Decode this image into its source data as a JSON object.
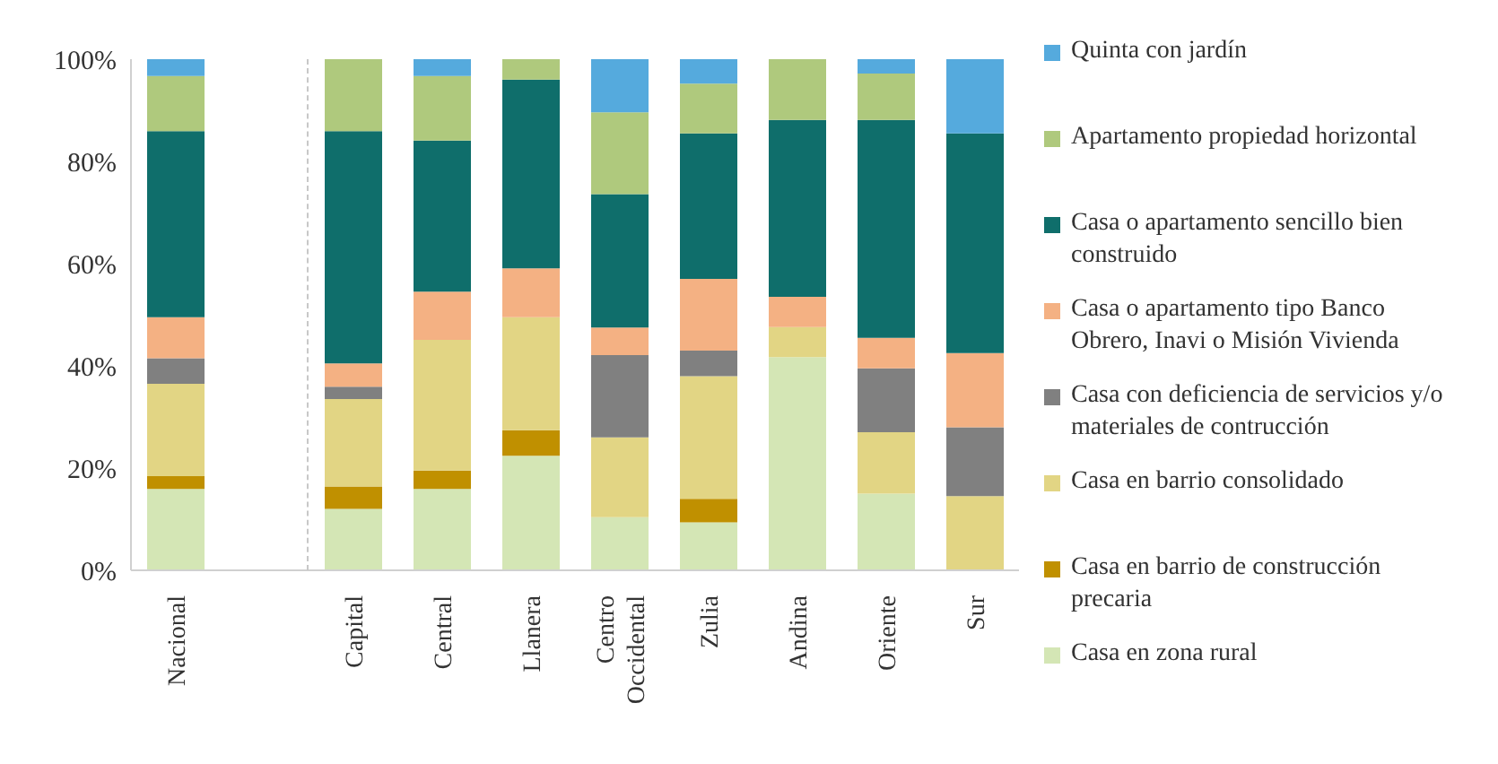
{
  "chart_data": {
    "type": "bar",
    "stacked": true,
    "categories": [
      "Nacional",
      null,
      "Capital",
      "Central",
      "Llanera",
      "Centro Occidental",
      "Zulia",
      "Andina",
      "Oriente",
      "Sur"
    ],
    "ylim": [
      0,
      100
    ],
    "yticks": [
      {
        "value": 0,
        "label": "0%"
      },
      {
        "value": 20,
        "label": "20%"
      },
      {
        "value": 40,
        "label": "40%"
      },
      {
        "value": 60,
        "label": "60%"
      },
      {
        "value": 80,
        "label": "80%"
      },
      {
        "value": 100,
        "label": "100%"
      }
    ],
    "grid": false,
    "legend": "right",
    "series": [
      {
        "name": "Casa en zona rural",
        "color": "#d4e6b5",
        "values": [
          15.9,
          null,
          12.0,
          15.9,
          22.4,
          10.4,
          9.4,
          41.7,
          15.0,
          0
        ]
      },
      {
        "name": "Casa en barrio de construcción precaria",
        "color": "#c09000",
        "values": [
          2.5,
          null,
          4.4,
          3.6,
          5.0,
          0,
          4.6,
          0,
          0,
          0
        ]
      },
      {
        "name": "Casa en barrio consolidado",
        "color": "#e2d584",
        "values": [
          18.1,
          null,
          17.1,
          25.6,
          22.1,
          15.6,
          24.0,
          5.9,
          12.0,
          14.5
        ]
      },
      {
        "name": "Casa con deficiencia de servicios y/o materiales de contrucción",
        "color": "#808080",
        "values": [
          5.0,
          null,
          2.4,
          0,
          0,
          16.1,
          5.0,
          0,
          12.5,
          13.5
        ]
      },
      {
        "name": "Casa o apartamento tipo Banco Obrero, Inavi o Misión Vivienda",
        "color": "#f4b183",
        "values": [
          8.0,
          null,
          4.6,
          9.4,
          9.6,
          5.4,
          14.0,
          5.9,
          6.0,
          14.5
        ]
      },
      {
        "name": "Casa o apartamento sencillo bien construido",
        "color": "#0f6e6b",
        "values": [
          36.4,
          null,
          45.4,
          29.6,
          36.9,
          26.1,
          28.5,
          34.6,
          42.6,
          43.0
        ]
      },
      {
        "name": "Apartamento propiedad horizontal",
        "color": "#afc97d",
        "values": [
          10.8,
          null,
          14.1,
          12.6,
          4.0,
          16.0,
          9.7,
          11.9,
          9.1,
          0
        ]
      },
      {
        "name": "Quinta con jardín",
        "color": "#55aadd",
        "values": [
          3.3,
          null,
          0,
          3.3,
          0,
          10.4,
          4.8,
          0,
          2.8,
          14.5
        ]
      }
    ]
  }
}
